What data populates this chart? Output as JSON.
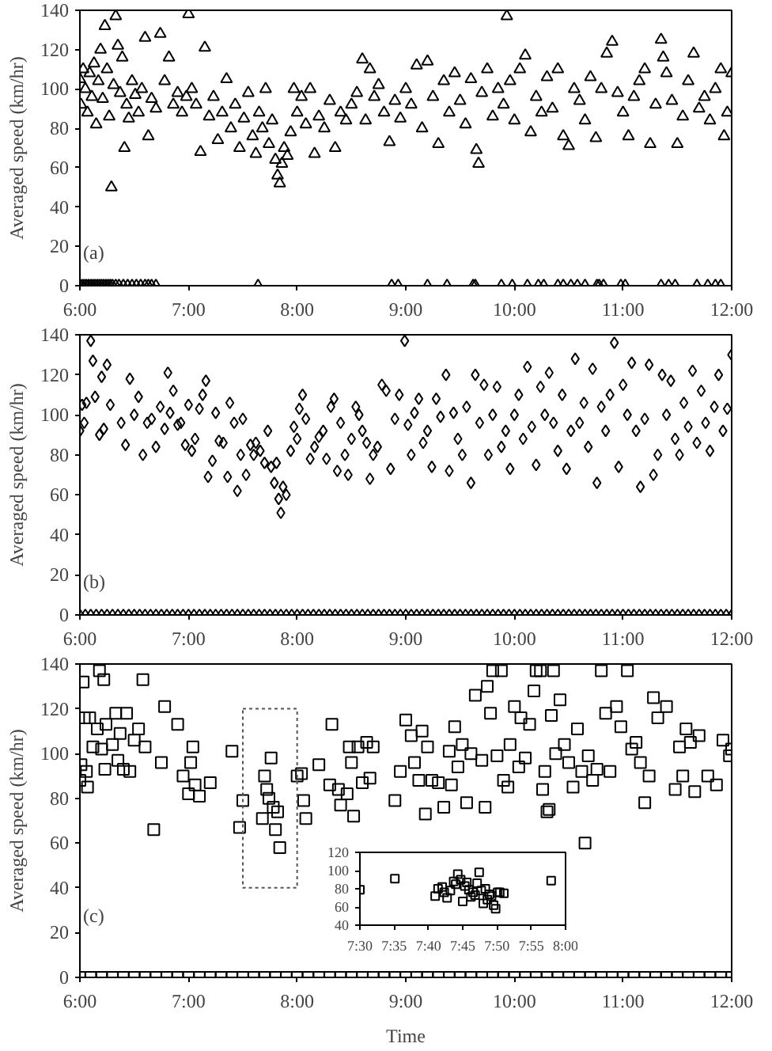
{
  "chart_data": [
    {
      "type": "scatter",
      "ylabel": "Averaged speed (km/hr)",
      "annotations": [
        "(a)"
      ],
      "marker": "triangle",
      "xlim": [
        6,
        12
      ],
      "ylim": [
        0,
        140
      ],
      "xticks": [
        {
          "value": 6,
          "label": "6:00"
        },
        {
          "value": 7,
          "label": "7:00"
        },
        {
          "value": 8,
          "label": "8:00"
        },
        {
          "value": 9,
          "label": "9:00"
        },
        {
          "value": 10,
          "label": "10:00"
        },
        {
          "value": 11,
          "label": "11:00"
        },
        {
          "value": 12,
          "label": "12:00"
        }
      ],
      "yticks": [
        0,
        20,
        40,
        60,
        80,
        100,
        120,
        140
      ],
      "series": [
        {
          "color": "#000000",
          "x": [
            6.0,
            6.01,
            6.03,
            6.05,
            6.07,
            6.09,
            6.11,
            6.13,
            6.15,
            6.17,
            6.19,
            6.21,
            6.23,
            6.25,
            6.27,
            6.29,
            6.31,
            6.33,
            6.35,
            6.37,
            6.39,
            6.41,
            6.43,
            6.45,
            6.48,
            6.51,
            6.54,
            6.57,
            6.6,
            6.63,
            6.66,
            6.7,
            6.74,
            6.78,
            6.82,
            6.86,
            6.9,
            6.94,
            6.98,
            7.0,
            7.03,
            7.07,
            7.11,
            7.15,
            7.19,
            7.23,
            7.27,
            7.31,
            7.35,
            7.39,
            7.43,
            7.47,
            7.51,
            7.55,
            7.59,
            7.62,
            7.65,
            7.68,
            7.71,
            7.74,
            7.77,
            7.8,
            7.82,
            7.84,
            7.86,
            7.88,
            7.91,
            7.94,
            7.97,
            8.0,
            8.04,
            8.08,
            8.12,
            8.16,
            8.2,
            8.25,
            8.3,
            8.35,
            8.4,
            8.45,
            8.5,
            8.55,
            8.6,
            8.63,
            8.67,
            8.71,
            8.75,
            8.8,
            8.85,
            8.9,
            8.95,
            9.0,
            9.05,
            9.1,
            9.15,
            9.2,
            9.25,
            9.3,
            9.35,
            9.4,
            9.45,
            9.5,
            9.55,
            9.6,
            9.65,
            9.67,
            9.7,
            9.75,
            9.8,
            9.85,
            9.9,
            9.93,
            9.96,
            10.0,
            10.05,
            10.1,
            10.15,
            10.2,
            10.25,
            10.3,
            10.35,
            10.4,
            10.45,
            10.5,
            10.55,
            10.6,
            10.65,
            10.7,
            10.75,
            10.8,
            10.85,
            10.9,
            10.95,
            11.0,
            11.05,
            11.1,
            11.15,
            11.2,
            11.25,
            11.3,
            11.35,
            11.37,
            11.4,
            11.45,
            11.5,
            11.55,
            11.6,
            11.65,
            11.7,
            11.75,
            11.8,
            11.85,
            11.9,
            11.93,
            11.96,
            12.0
          ],
          "values": [
            105,
            92,
            110,
            100,
            88,
            108,
            96,
            113,
            82,
            104,
            120,
            95,
            132,
            110,
            86,
            50,
            102,
            137,
            122,
            98,
            116,
            70,
            92,
            85,
            104,
            97,
            88,
            100,
            126,
            76,
            95,
            90,
            128,
            104,
            116,
            92,
            98,
            88,
            96,
            138,
            100,
            92,
            68,
            121,
            86,
            96,
            74,
            88,
            105,
            80,
            92,
            70,
            85,
            98,
            76,
            67,
            88,
            80,
            100,
            72,
            84,
            64,
            56,
            52,
            62,
            70,
            66,
            78,
            100,
            88,
            96,
            82,
            100,
            67,
            86,
            80,
            94,
            70,
            88,
            84,
            92,
            98,
            115,
            84,
            110,
            96,
            102,
            88,
            73,
            94,
            85,
            100,
            92,
            112,
            80,
            114,
            96,
            72,
            104,
            88,
            108,
            94,
            82,
            105,
            69,
            62,
            98,
            110,
            86,
            100,
            92,
            137,
            104,
            84,
            110,
            117,
            78,
            96,
            88,
            106,
            90,
            110,
            76,
            71,
            100,
            94,
            84,
            106,
            75,
            100,
            118,
            124,
            98,
            88,
            76,
            96,
            104,
            110,
            72,
            92,
            125,
            116,
            108,
            94,
            72,
            86,
            104,
            118,
            90,
            96,
            84,
            100,
            110,
            76,
            88,
            108
          ]
        },
        {
          "color": "#000000",
          "x": [
            6.0,
            6.02,
            6.04,
            6.06,
            6.08,
            6.1,
            6.12,
            6.14,
            6.16,
            6.18,
            6.2,
            6.22,
            6.24,
            6.26,
            6.28,
            6.3,
            6.33,
            6.36,
            6.4,
            6.44,
            6.48,
            6.52,
            6.56,
            6.6,
            6.63,
            6.66,
            6.7,
            7.64,
            8.87,
            8.93,
            9.2,
            9.38,
            9.62,
            9.64,
            9.88,
            9.98,
            10.12,
            10.22,
            10.27,
            10.4,
            10.45,
            10.52,
            10.58,
            10.65,
            10.76,
            10.78,
            10.82,
            10.98,
            11.02,
            11.35,
            11.42,
            11.48,
            11.68,
            11.78,
            11.85,
            11.9
          ],
          "values": [
            0,
            0,
            0,
            0,
            0,
            0,
            0,
            0,
            0,
            0,
            0,
            0,
            0,
            0,
            0,
            0,
            0,
            0,
            0,
            0,
            0,
            0,
            0,
            0,
            0,
            0,
            0,
            0,
            0,
            0,
            0,
            0,
            0,
            0,
            0,
            0,
            0,
            0,
            0,
            0,
            0,
            0,
            0,
            0,
            0,
            0,
            0,
            0,
            0,
            0,
            0,
            0,
            0,
            0,
            0,
            0
          ]
        }
      ]
    },
    {
      "type": "scatter",
      "ylabel": "Averaged speed (km/hr)",
      "annotations": [
        "(b)"
      ],
      "marker": "diamond",
      "xlim": [
        6,
        12
      ],
      "ylim": [
        0,
        140
      ],
      "xticks": [
        {
          "value": 6,
          "label": "6:00"
        },
        {
          "value": 7,
          "label": "7:00"
        },
        {
          "value": 8,
          "label": "8:00"
        },
        {
          "value": 9,
          "label": "9:00"
        },
        {
          "value": 10,
          "label": "10:00"
        },
        {
          "value": 11,
          "label": "11:00"
        },
        {
          "value": 12,
          "label": "12:00"
        }
      ],
      "yticks": [
        0,
        20,
        40,
        60,
        80,
        100,
        120,
        140
      ],
      "series": [
        {
          "color": "#000000",
          "x": [
            6.0,
            6.02,
            6.04,
            6.06,
            6.1,
            6.12,
            6.14,
            6.18,
            6.2,
            6.22,
            6.25,
            6.28,
            6.38,
            6.42,
            6.46,
            6.5,
            6.54,
            6.58,
            6.62,
            6.66,
            6.7,
            6.74,
            6.78,
            6.81,
            6.83,
            6.86,
            6.9,
            6.93,
            6.97,
            7.0,
            7.03,
            7.06,
            7.1,
            7.13,
            7.16,
            7.18,
            7.22,
            7.25,
            7.28,
            7.32,
            7.36,
            7.38,
            7.42,
            7.45,
            7.48,
            7.5,
            7.53,
            7.57,
            7.6,
            7.62,
            7.66,
            7.7,
            7.73,
            7.76,
            7.79,
            7.81,
            7.83,
            7.85,
            7.87,
            7.9,
            7.94,
            7.97,
            8.0,
            8.02,
            8.05,
            8.08,
            8.12,
            8.16,
            8.2,
            8.24,
            8.27,
            8.31,
            8.34,
            8.37,
            8.4,
            8.44,
            8.47,
            8.5,
            8.54,
            8.57,
            8.6,
            8.64,
            8.67,
            8.7,
            8.74,
            8.78,
            8.82,
            8.86,
            8.9,
            8.94,
            8.99,
            9.02,
            9.05,
            9.08,
            9.12,
            9.16,
            9.2,
            9.24,
            9.28,
            9.32,
            9.37,
            9.4,
            9.44,
            9.48,
            9.52,
            9.56,
            9.6,
            9.64,
            9.68,
            9.72,
            9.76,
            9.8,
            9.84,
            9.88,
            9.92,
            9.96,
            10.0,
            10.04,
            10.08,
            10.12,
            10.16,
            10.2,
            10.24,
            10.28,
            10.32,
            10.36,
            10.4,
            10.44,
            10.48,
            10.52,
            10.56,
            10.6,
            10.64,
            10.68,
            10.72,
            10.76,
            10.8,
            10.84,
            10.88,
            10.92,
            10.96,
            11.0,
            11.04,
            11.08,
            11.12,
            11.16,
            11.2,
            11.24,
            11.28,
            11.32,
            11.36,
            11.4,
            11.44,
            11.48,
            11.52,
            11.56,
            11.6,
            11.64,
            11.68,
            11.72,
            11.76,
            11.8,
            11.84,
            11.88,
            11.92,
            11.96,
            12.0
          ],
          "values": [
            92,
            105,
            96,
            106,
            137,
            127,
            109,
            90,
            119,
            93,
            125,
            105,
            96,
            85,
            118,
            100,
            109,
            80,
            96,
            98,
            84,
            104,
            93,
            121,
            101,
            112,
            95,
            96,
            85,
            105,
            82,
            88,
            103,
            110,
            117,
            69,
            77,
            101,
            87,
            86,
            69,
            106,
            96,
            62,
            80,
            98,
            70,
            85,
            80,
            86,
            82,
            76,
            92,
            74,
            66,
            76,
            58,
            51,
            64,
            60,
            82,
            94,
            88,
            103,
            110,
            98,
            78,
            84,
            89,
            92,
            78,
            104,
            108,
            72,
            96,
            80,
            70,
            88,
            104,
            100,
            92,
            86,
            68,
            80,
            84,
            115,
            112,
            73,
            98,
            110,
            137,
            95,
            80,
            101,
            108,
            86,
            92,
            74,
            108,
            99,
            120,
            72,
            101,
            88,
            80,
            104,
            66,
            120,
            96,
            115,
            80,
            100,
            114,
            84,
            92,
            73,
            100,
            110,
            88,
            124,
            94,
            75,
            114,
            100,
            121,
            96,
            82,
            110,
            73,
            92,
            128,
            96,
            106,
            84,
            123,
            66,
            104,
            92,
            110,
            136,
            74,
            115,
            100,
            126,
            92,
            64,
            98,
            125,
            70,
            80,
            120,
            100,
            117,
            88,
            80,
            106,
            94,
            122,
            86,
            112,
            96,
            82,
            104,
            120,
            92,
            103,
            130
          ]
        },
        {
          "color": "#000000",
          "x": [
            6,
            6.05,
            6.1,
            6.15,
            6.2,
            6.25,
            6.3,
            6.35,
            6.4,
            6.45,
            6.5,
            6.55,
            6.6,
            6.65,
            6.7,
            6.75,
            6.8,
            6.85,
            6.9,
            6.95,
            7,
            7.05,
            7.1,
            7.15,
            7.2,
            7.25,
            7.3,
            7.35,
            7.4,
            7.45,
            7.5,
            7.55,
            7.6,
            7.65,
            7.7,
            7.75,
            7.8,
            7.85,
            7.9,
            7.95,
            8,
            8.05,
            8.1,
            8.15,
            8.2,
            8.25,
            8.3,
            8.35,
            8.4,
            8.45,
            8.5,
            8.55,
            8.6,
            8.65,
            8.7,
            8.75,
            8.8,
            8.85,
            8.9,
            8.95,
            9,
            9.05,
            9.1,
            9.15,
            9.2,
            9.25,
            9.3,
            9.35,
            9.4,
            9.45,
            9.5,
            9.55,
            9.6,
            9.65,
            9.7,
            9.75,
            9.8,
            9.85,
            9.9,
            9.95,
            10,
            10.05,
            10.1,
            10.15,
            10.2,
            10.25,
            10.3,
            10.35,
            10.4,
            10.45,
            10.5,
            10.55,
            10.6,
            10.65,
            10.7,
            10.75,
            10.8,
            10.85,
            10.9,
            10.95,
            11,
            11.05,
            11.1,
            11.15,
            11.2,
            11.25,
            11.3,
            11.35,
            11.4,
            11.45,
            11.5,
            11.55,
            11.6,
            11.65,
            11.7,
            11.75,
            11.8,
            11.85,
            11.9,
            11.95,
            12
          ],
          "values": [
            0,
            0,
            0,
            0,
            0,
            0,
            0,
            0,
            0,
            0,
            0,
            0,
            0,
            0,
            0,
            0,
            0,
            0,
            0,
            0,
            0,
            0,
            0,
            0,
            0,
            0,
            0,
            0,
            0,
            0,
            0,
            0,
            0,
            0,
            0,
            0,
            0,
            0,
            0,
            0,
            0,
            0,
            0,
            0,
            0,
            0,
            0,
            0,
            0,
            0,
            0,
            0,
            0,
            0,
            0,
            0,
            0,
            0,
            0,
            0,
            0,
            0,
            0,
            0,
            0,
            0,
            0,
            0,
            0,
            0,
            0,
            0,
            0,
            0,
            0,
            0,
            0,
            0,
            0,
            0,
            0,
            0,
            0,
            0,
            0,
            0,
            0,
            0,
            0,
            0,
            0,
            0,
            0,
            0,
            0,
            0,
            0,
            0,
            0,
            0,
            0,
            0,
            0,
            0,
            0,
            0,
            0,
            0,
            0,
            0,
            0,
            0,
            0,
            0,
            0,
            0,
            0,
            0,
            0,
            0,
            0
          ]
        }
      ]
    },
    {
      "type": "scatter",
      "ylabel": "Averaged speed (km/hr)",
      "xlabel": "Time",
      "annotations": [
        "(c)"
      ],
      "marker": "square",
      "xlim": [
        6,
        12
      ],
      "ylim": [
        0,
        140
      ],
      "xticks": [
        {
          "value": 6,
          "label": "6:00"
        },
        {
          "value": 7,
          "label": "7:00"
        },
        {
          "value": 8,
          "label": "8:00"
        },
        {
          "value": 9,
          "label": "9:00"
        },
        {
          "value": 10,
          "label": "10:00"
        },
        {
          "value": 11,
          "label": "11:00"
        },
        {
          "value": 12,
          "label": "12:00"
        }
      ],
      "yticks": [
        0,
        20,
        40,
        60,
        80,
        100,
        120,
        140
      ],
      "series": [
        {
          "color": "#000000",
          "x": [
            6.0,
            6.01,
            6.03,
            6.04,
            6.06,
            6.07,
            6.09,
            6.12,
            6.16,
            6.18,
            6.2,
            6.22,
            6.23,
            6.24,
            6.3,
            6.33,
            6.35,
            6.37,
            6.4,
            6.43,
            6.46,
            6.5,
            6.54,
            6.58,
            6.6,
            6.68,
            6.75,
            6.78,
            6.9,
            6.95,
            7.0,
            7.02,
            7.04,
            7.06,
            7.1,
            7.2,
            7.4,
            7.47,
            7.5,
            7.68,
            7.7,
            7.72,
            7.74,
            7.76,
            7.78,
            7.8,
            7.82,
            7.84,
            8.0,
            8.04,
            8.06,
            8.08,
            8.2,
            8.3,
            8.32,
            8.38,
            8.4,
            8.46,
            8.48,
            8.5,
            8.52,
            8.56,
            8.6,
            8.64,
            8.67,
            8.7,
            8.9,
            8.95,
            9.0,
            9.05,
            9.08,
            9.12,
            9.15,
            9.18,
            9.2,
            9.24,
            9.3,
            9.35,
            9.4,
            9.42,
            9.45,
            9.48,
            9.52,
            9.56,
            9.6,
            9.64,
            9.7,
            9.73,
            9.75,
            9.78,
            9.8,
            9.84,
            9.88,
            9.9,
            9.94,
            9.96,
            10.0,
            10.04,
            10.06,
            10.1,
            10.14,
            10.18,
            10.2,
            10.24,
            10.26,
            10.28,
            10.3,
            10.32,
            10.34,
            10.36,
            10.38,
            10.42,
            10.46,
            10.5,
            10.54,
            10.58,
            10.62,
            10.65,
            10.68,
            10.72,
            10.76,
            10.8,
            10.84,
            10.88,
            10.94,
            10.98,
            11.04,
            11.08,
            11.12,
            11.16,
            11.2,
            11.24,
            11.28,
            11.32,
            11.4,
            11.48,
            11.52,
            11.55,
            11.58,
            11.62,
            11.66,
            11.7,
            11.78,
            11.86,
            11.92,
            11.98,
            12.0
          ],
          "values": [
            88,
            95,
            132,
            116,
            92,
            85,
            116,
            103,
            111,
            137,
            102,
            133,
            93,
            113,
            104,
            118,
            97,
            109,
            93,
            118,
            92,
            106,
            111,
            133,
            103,
            66,
            96,
            121,
            113,
            90,
            82,
            96,
            103,
            86,
            81,
            87,
            101,
            67,
            79,
            71,
            90,
            84,
            80,
            98,
            76,
            66,
            74,
            58,
            90,
            91,
            79,
            71,
            95,
            86,
            113,
            84,
            77,
            82,
            103,
            96,
            72,
            103,
            87,
            105,
            89,
            103,
            79,
            92,
            115,
            108,
            96,
            88,
            110,
            73,
            103,
            88,
            87,
            76,
            101,
            86,
            112,
            94,
            104,
            78,
            100,
            126,
            97,
            76,
            130,
            118,
            137,
            99,
            137,
            88,
            85,
            104,
            121,
            94,
            116,
            98,
            113,
            128,
            137,
            137,
            84,
            92,
            74,
            75,
            117,
            137,
            100,
            124,
            104,
            96,
            85,
            111,
            92,
            60,
            99,
            88,
            93,
            137,
            118,
            92,
            121,
            112,
            137,
            102,
            105,
            96,
            78,
            90,
            125,
            116,
            121,
            84,
            103,
            90,
            111,
            105,
            83,
            108,
            90,
            86,
            106,
            99,
            102
          ]
        },
        {
          "color": "#000000",
          "x": [
            6,
            6.1,
            6.2,
            6.3,
            6.4,
            6.5,
            6.6,
            6.7,
            6.8,
            6.9,
            7,
            7.1,
            7.2,
            7.3,
            7.4,
            7.5,
            7.6,
            7.7,
            7.8,
            7.9,
            8,
            8.1,
            8.2,
            8.3,
            8.4,
            8.5,
            8.6,
            8.7,
            8.8,
            8.9,
            9,
            9.1,
            9.2,
            9.3,
            9.4,
            9.5,
            9.6,
            9.7,
            9.8,
            9.9,
            10,
            10.1,
            10.2,
            10.3,
            10.4,
            10.5,
            10.6,
            10.7,
            10.8,
            10.9,
            11,
            11.1,
            11.2,
            11.3,
            11.4,
            11.5,
            11.6,
            11.7,
            11.8,
            11.9,
            12
          ],
          "values": [
            0,
            0,
            0,
            0,
            0,
            0,
            0,
            0,
            0,
            0,
            0,
            0,
            0,
            0,
            0,
            0,
            0,
            0,
            0,
            0,
            0,
            0,
            0,
            0,
            0,
            0,
            0,
            0,
            0,
            0,
            0,
            0,
            0,
            0,
            0,
            0,
            0,
            0,
            0,
            0,
            0,
            0,
            0,
            0,
            0,
            0,
            0,
            0,
            0,
            0,
            0,
            0,
            0,
            0,
            0,
            0,
            0,
            0,
            0,
            0,
            0
          ]
        }
      ]
    },
    {
      "type": "scatter",
      "marker": "square",
      "xlim": [
        7.5,
        8.0
      ],
      "ylim": [
        40,
        120
      ],
      "xticks": [
        {
          "value": 7.5,
          "label": "7:30"
        },
        {
          "value": 7.5833,
          "label": "7:35"
        },
        {
          "value": 7.6667,
          "label": "7:40"
        },
        {
          "value": 7.75,
          "label": "7:45"
        },
        {
          "value": 7.8333,
          "label": "7:50"
        },
        {
          "value": 7.9167,
          "label": "7:55"
        },
        {
          "value": 8.0,
          "label": "8:00"
        }
      ],
      "yticks": [
        40,
        60,
        80,
        100,
        120
      ],
      "series": [
        {
          "color": "#000000",
          "x": [
            7.5,
            7.585,
            7.683,
            7.69,
            7.7,
            7.705,
            7.712,
            7.72,
            7.728,
            7.733,
            7.738,
            7.745,
            7.75,
            7.755,
            7.76,
            7.765,
            7.77,
            7.775,
            7.78,
            7.785,
            7.79,
            7.795,
            7.8,
            7.805,
            7.81,
            7.815,
            7.82,
            7.825,
            7.83,
            7.835,
            7.84,
            7.85,
            7.965
          ],
          "values": [
            79,
            91,
            72,
            80,
            82,
            76,
            70,
            78,
            88,
            85,
            96,
            90,
            66,
            83,
            87,
            79,
            71,
            76,
            73,
            86,
            98,
            78,
            64,
            80,
            68,
            74,
            72,
            62,
            58,
            76,
            76,
            75,
            89
          ]
        }
      ]
    }
  ]
}
